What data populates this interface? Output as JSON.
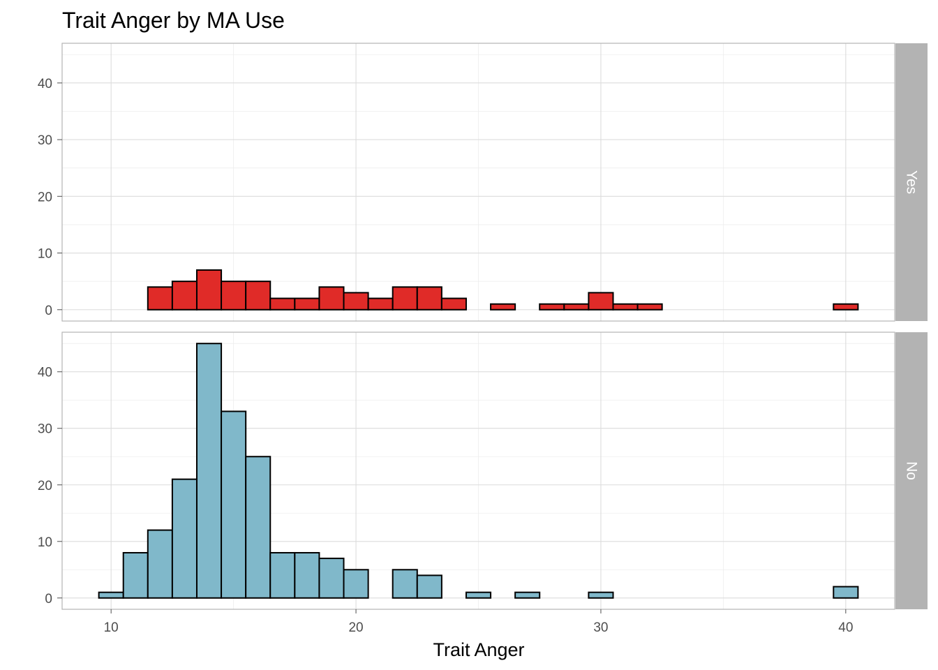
{
  "chart_data": {
    "type": "bar",
    "title": "Trait Anger by MA Use",
    "xlabel": "Trait Anger",
    "ylabel": "",
    "xlim": [
      8,
      42
    ],
    "ylim": [
      -2,
      47
    ],
    "x_ticks": [
      10,
      20,
      30,
      40
    ],
    "y_ticks": [
      0,
      10,
      20,
      30,
      40
    ],
    "bin_width": 1,
    "bin_centers": [
      10,
      11,
      12,
      13,
      14,
      15,
      16,
      17,
      18,
      19,
      20,
      21,
      22,
      23,
      24,
      25,
      26,
      27,
      28,
      29,
      30,
      31,
      32,
      33,
      34,
      35,
      36,
      37,
      38,
      39,
      40
    ],
    "grid": true,
    "legend": "none",
    "facets": [
      {
        "label": "Yes",
        "color": "#e02b28",
        "values": [
          0,
          0,
          4,
          5,
          7,
          5,
          5,
          2,
          2,
          4,
          3,
          2,
          4,
          4,
          2,
          0,
          1,
          0,
          1,
          1,
          3,
          1,
          1,
          0,
          0,
          0,
          0,
          0,
          0,
          0,
          1
        ]
      },
      {
        "label": "No",
        "color": "#80b8ca",
        "values": [
          1,
          8,
          12,
          21,
          45,
          33,
          25,
          8,
          8,
          7,
          5,
          0,
          5,
          4,
          0,
          1,
          0,
          1,
          0,
          0,
          1,
          0,
          0,
          0,
          0,
          0,
          0,
          0,
          0,
          0,
          2
        ]
      }
    ]
  }
}
